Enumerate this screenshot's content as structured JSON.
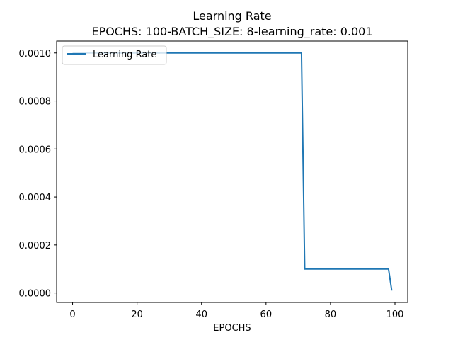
{
  "chart_data": {
    "type": "line",
    "title": "Learning Rate",
    "subtitle": "EPOCHS: 100-BATCH_SIZE: 8-learning_rate: 0.001",
    "xlabel": "EPOCHS",
    "ylabel": "",
    "xlim": [
      -4.95,
      103.95
    ],
    "ylim": [
      -3.95e-05,
      0.0010495
    ],
    "x_ticks": [
      0,
      20,
      40,
      60,
      80,
      100
    ],
    "x_tick_labels": [
      "0",
      "20",
      "40",
      "60",
      "80",
      "100"
    ],
    "y_ticks": [
      0.0,
      0.0002,
      0.0004,
      0.0006,
      0.0008,
      0.001
    ],
    "y_tick_labels": [
      "0.0000",
      "0.0002",
      "0.0004",
      "0.0006",
      "0.0008",
      "0.0010"
    ],
    "grid": false,
    "legend_position": "upper-left",
    "series": [
      {
        "name": "Learning Rate",
        "color": "#1f77b4",
        "x": [
          0,
          71,
          72,
          98,
          99
        ],
        "y": [
          0.001,
          0.001,
          0.0001,
          0.0001,
          1e-05
        ]
      }
    ]
  }
}
